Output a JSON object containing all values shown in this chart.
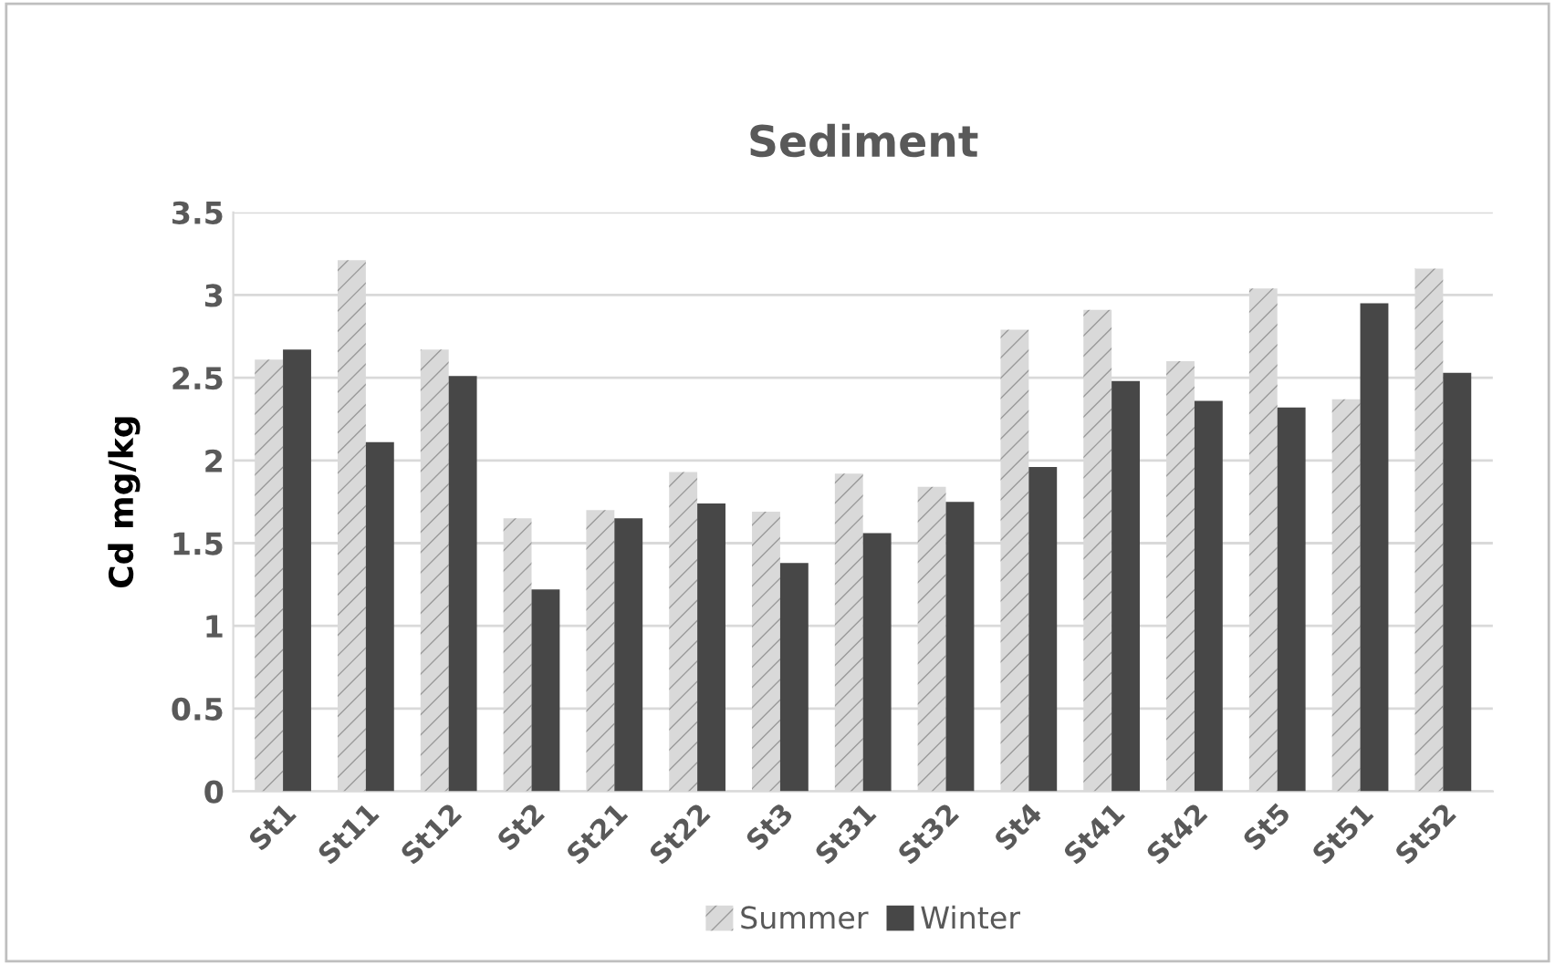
{
  "chart_data": {
    "type": "bar",
    "title": "Sediment",
    "ylabel": "Cd mg/kg",
    "categories": [
      "St1",
      "St11",
      "St12",
      "St2",
      "St21",
      "St22",
      "St3",
      "St31",
      "St32",
      "St4",
      "St41",
      "St42",
      "St5",
      "St51",
      "St52"
    ],
    "series": [
      {
        "name": "Summer",
        "color": "#d9d9d9",
        "values": [
          2.61,
          3.21,
          2.67,
          1.65,
          1.7,
          1.93,
          1.69,
          1.92,
          1.84,
          2.79,
          2.91,
          2.6,
          3.04,
          2.37,
          3.16
        ]
      },
      {
        "name": "Winter",
        "color": "#474747",
        "values": [
          2.67,
          2.11,
          2.51,
          1.22,
          1.65,
          1.74,
          1.38,
          1.56,
          1.75,
          1.96,
          2.48,
          2.36,
          2.32,
          2.95,
          2.53
        ]
      }
    ],
    "ylim": [
      0,
      3.5
    ],
    "yticks": [
      0,
      0.5,
      1,
      1.5,
      2,
      2.5,
      3,
      3.5
    ],
    "grid": "y",
    "legend": "bottom"
  }
}
